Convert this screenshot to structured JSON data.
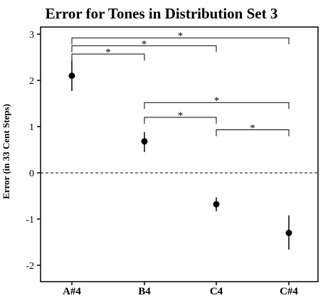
{
  "chart_data": {
    "type": "scatter",
    "title": "Error for Tones in Distribution Set 3",
    "xlabel": "",
    "ylabel": "Error (in 33 Cent Steps)",
    "categories": [
      "A#4",
      "B4",
      "C4",
      "C#4"
    ],
    "series": [
      {
        "values": [
          2.1,
          0.68,
          -0.68,
          -1.3
        ],
        "error_low": [
          1.77,
          0.45,
          -0.83,
          -1.66
        ],
        "error_high": [
          2.43,
          0.88,
          -0.53,
          -0.92
        ]
      }
    ],
    "ylim": [
      -2.2,
      3.1
    ],
    "yticks": [
      "3",
      "2",
      "1",
      "0",
      "-1",
      "-2"
    ],
    "ytick_values": [
      3,
      2,
      1,
      0,
      -1,
      -2
    ],
    "reference_line": 0,
    "grid": false,
    "significance": [
      {
        "from": "A#4",
        "to": "C#4",
        "label": "*",
        "y": 2.92
      },
      {
        "from": "A#4",
        "to": "C4",
        "label": "*",
        "y": 2.75
      },
      {
        "from": "A#4",
        "to": "B4",
        "label": "*",
        "y": 2.57
      },
      {
        "from": "B4",
        "to": "C#4",
        "label": "*",
        "y": 1.52
      },
      {
        "from": "B4",
        "to": "C4",
        "label": "*",
        "y": 1.2
      },
      {
        "from": "C4",
        "to": "C#4",
        "label": "*",
        "y": 0.93
      }
    ]
  }
}
